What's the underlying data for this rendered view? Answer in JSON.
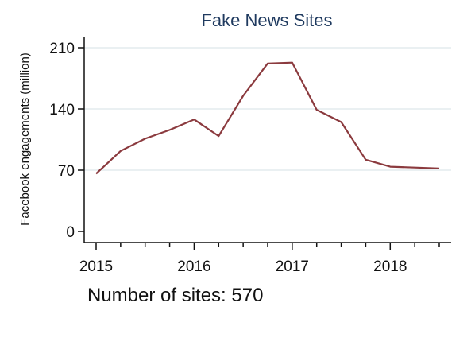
{
  "chart_data": {
    "type": "line",
    "title": "Fake News Sites",
    "xlabel": "",
    "ylabel": "Facebook engagements (million)",
    "xlim": [
      2015,
      2018.5
    ],
    "ylim": [
      0,
      210
    ],
    "x_ticks": [
      "2015",
      "2016",
      "2017",
      "2018"
    ],
    "y_ticks": [
      "0",
      "70",
      "140",
      "210"
    ],
    "grid": true,
    "series": [
      {
        "x": [
          2015.0,
          2015.25,
          2015.5,
          2015.75,
          2016.0,
          2016.25,
          2016.5,
          2016.75,
          2017.0,
          2017.25,
          2017.5,
          2017.75,
          2018.0,
          2018.25,
          2018.5
        ],
        "values": [
          66,
          92,
          106,
          116,
          128,
          109,
          155,
          192,
          193,
          139,
          125,
          82,
          74,
          73,
          72
        ],
        "color": "#8b3a3e"
      }
    ]
  },
  "annotation": {
    "text": "Number of sites: 570"
  }
}
